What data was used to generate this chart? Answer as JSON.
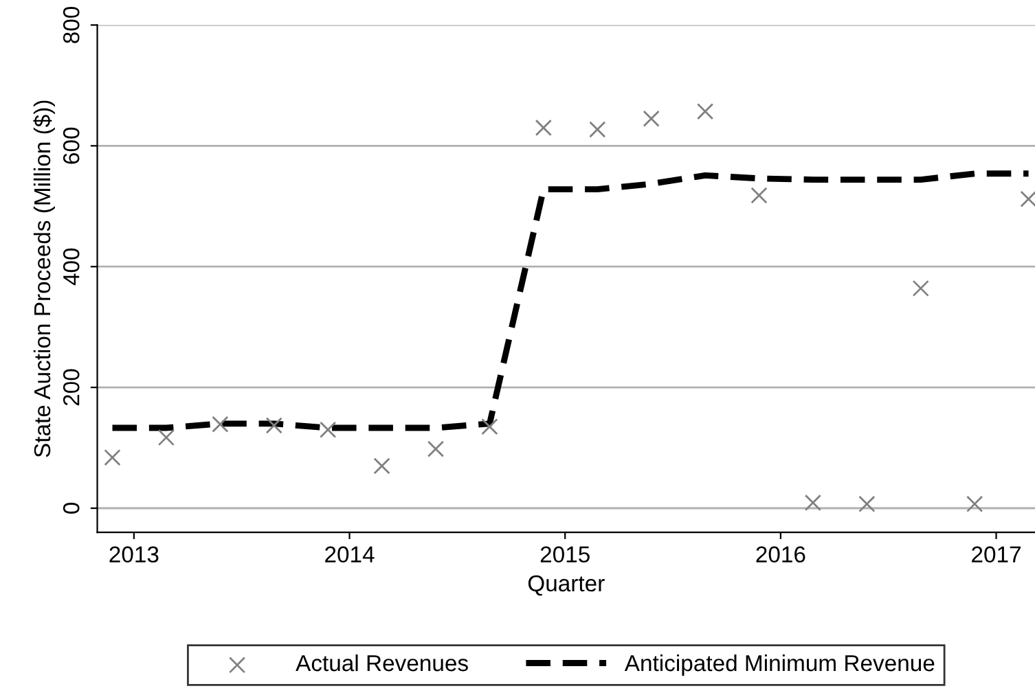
{
  "chart_data": {
    "type": "scatter",
    "xlabel": "Quarter",
    "ylabel": "State Auction Proceeds (Million ($))",
    "x": [
      2012.9,
      2013.15,
      2013.4,
      2013.65,
      2013.9,
      2014.15,
      2014.4,
      2014.65,
      2014.9,
      2015.15,
      2015.4,
      2015.65,
      2015.9,
      2016.15,
      2016.4,
      2016.65,
      2016.9,
      2017.15
    ],
    "series": [
      {
        "name": "Actual Revenues",
        "color": "#808080",
        "marker": "cross",
        "values": [
          84,
          117,
          139,
          137,
          130,
          70,
          98,
          135,
          630,
          627,
          645,
          657,
          518,
          9,
          7,
          364,
          7,
          512
        ]
      },
      {
        "name": "Anticipated Minimum Revenue",
        "type": "line",
        "color": "#000000",
        "marker": "none",
        "line_style": "dashed",
        "values": [
          133,
          133,
          140,
          140,
          133,
          133,
          133,
          140,
          528,
          528,
          537,
          551,
          546,
          544,
          544,
          544,
          554,
          554
        ]
      }
    ],
    "xlim": [
      2012.83,
      2017.18
    ],
    "xticks": [
      2013,
      2014,
      2015,
      2016,
      2017
    ],
    "ylim": [
      -40,
      800
    ],
    "yticks": [
      0,
      200,
      400,
      600,
      800
    ],
    "grid": "y",
    "legend": "bottom"
  }
}
